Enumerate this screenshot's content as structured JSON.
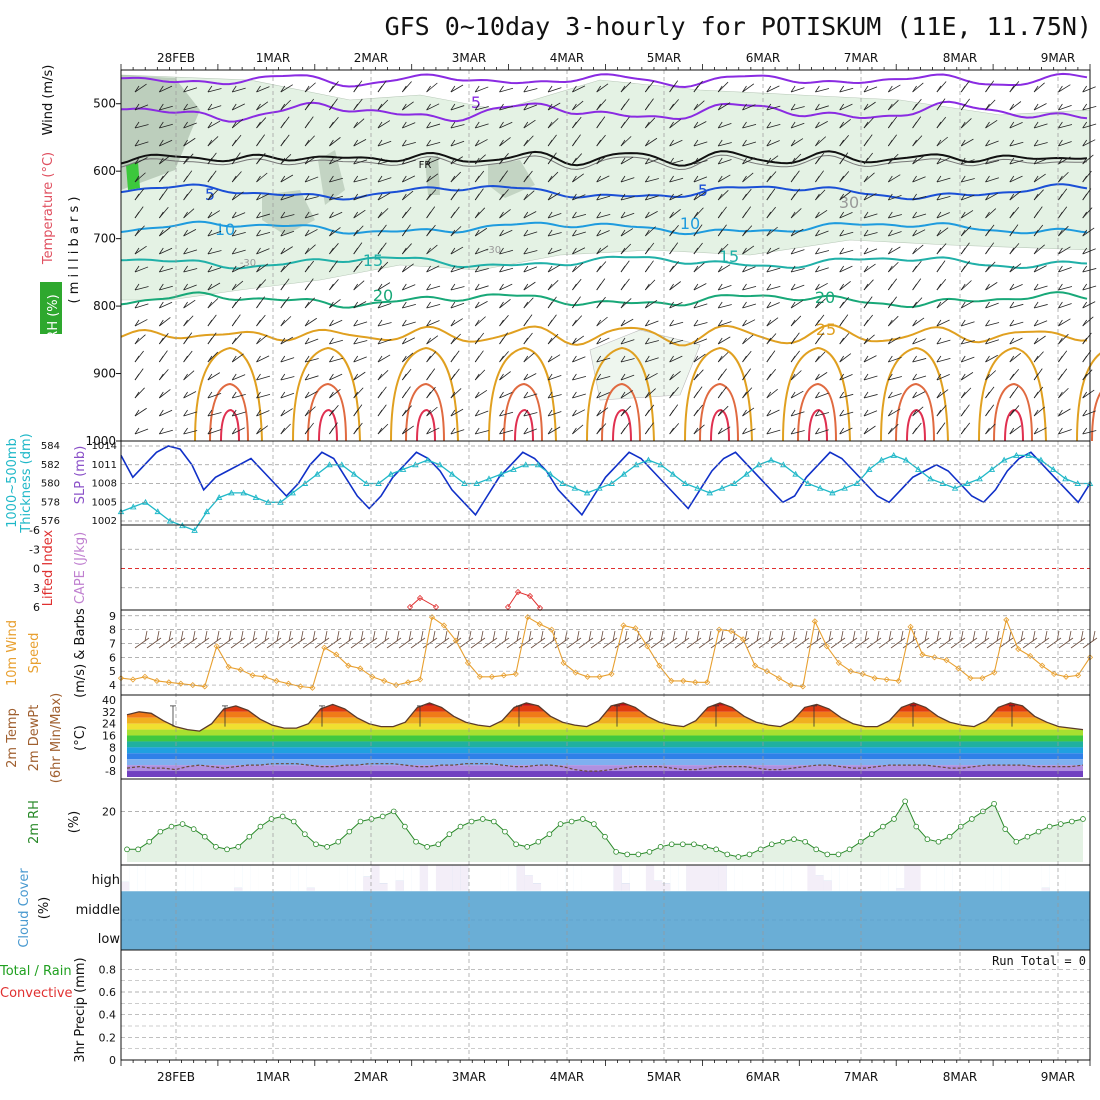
{
  "title": "GFS 0~10day 3-hourly for POTISKUM (11E, 11.75N)",
  "dates": [
    "28FEB",
    "1MAR",
    "2MAR",
    "3MAR",
    "4MAR",
    "5MAR",
    "6MAR",
    "7MAR",
    "8MAR",
    "9MAR"
  ],
  "colors": {
    "grid": "#999999",
    "temp_purple": "#8a2be2",
    "temp_blue": "#1a4fd6",
    "temp_lightblue": "#1e9bde",
    "temp_teal": "#20b0a8",
    "temp_green": "#18a878",
    "temp_orange": "#e0a020",
    "temp_red": "#e03050",
    "rh_fill": "#e4f2e4",
    "rh_dark": "#9bb09b",
    "slp": "#1030c8",
    "thickness": "#20b8c8",
    "li": "#e03030",
    "wind10": "#e8a030",
    "rh2m": "#2a8a2a",
    "cloud": "#6aaed6",
    "precip_green": "#20a020",
    "precip_red": "#e03030"
  },
  "panels": {
    "upper": {
      "labels": [
        "RH (%)",
        "Temperature (°C)",
        "Wind (m/s)",
        "( m i l l i b a r s )"
      ],
      "yticks": [
        "500",
        "600",
        "700",
        "800",
        "900",
        "1000"
      ],
      "isotherm_labels": [
        "5",
        "FR",
        "5",
        "5",
        "10",
        "10",
        "15",
        "15",
        "20",
        "20",
        "25",
        "-30",
        "30",
        "-30"
      ]
    },
    "thick": {
      "labels": [
        "1000~500mb",
        "Thickness (dm)",
        "SLP (mb)"
      ],
      "left_ticks": [
        "584",
        "582",
        "580",
        "578",
        "576"
      ],
      "right_ticks": [
        "1014",
        "1011",
        "1008",
        "1005",
        "1002"
      ]
    },
    "li": {
      "labels": [
        "Lifted Index",
        "CAPE (J/kg)"
      ],
      "yticks": [
        "-6",
        "-3",
        "0",
        "3",
        "6"
      ]
    },
    "wind": {
      "labels": [
        "10m Wind",
        "Speed",
        "(m/s) & Barbs"
      ],
      "yticks": [
        "9",
        "8",
        "7",
        "6",
        "5",
        "4"
      ]
    },
    "temp": {
      "labels": [
        "2m Temp",
        "2m DewPt",
        "(6hr Min/Max)",
        "(°C)"
      ],
      "yticks": [
        "40",
        "32",
        "24",
        "16",
        "8",
        "0",
        "-8"
      ]
    },
    "rh": {
      "labels": [
        "2m RH",
        "(%)"
      ],
      "yticks": [
        "20"
      ]
    },
    "cloud": {
      "labels": [
        "Cloud Cover",
        "(%)"
      ],
      "yticks": [
        "high",
        "middle",
        "low"
      ]
    },
    "precip": {
      "labels": [
        "Total / Rain",
        "Convective",
        "3hr Precip (mm)"
      ],
      "yticks": [
        "0.8",
        "0.6",
        "0.4",
        "0.2",
        "0"
      ],
      "run_total": "Run Total = 0"
    }
  },
  "chart_data": [
    {
      "type": "line",
      "name": "thickness_slp",
      "series": [
        {
          "name": "SLP (mb)",
          "values": [
            1012.5,
            1009,
            1011,
            1013,
            1014,
            1013.5,
            1011,
            1007,
            1009,
            1010,
            1011,
            1012,
            1010,
            1008,
            1006,
            1008,
            1011,
            1013,
            1012,
            1009,
            1006,
            1004,
            1006,
            1009,
            1011,
            1013,
            1012,
            1010,
            1007,
            1005,
            1003,
            1006,
            1009,
            1011,
            1013,
            1012,
            1010,
            1007,
            1005,
            1003,
            1006,
            1009,
            1011,
            1013,
            1012,
            1010,
            1008,
            1006,
            1004,
            1007,
            1010,
            1012,
            1013,
            1011,
            1009,
            1007,
            1005,
            1006,
            1009,
            1011,
            1013,
            1012,
            1010,
            1008,
            1006,
            1005,
            1007,
            1009,
            1010,
            1011,
            1010,
            1008,
            1006,
            1005,
            1007,
            1010,
            1012,
            1013,
            1011,
            1009,
            1007,
            1005,
            1008
          ]
        },
        {
          "name": "Thickness (dm)",
          "values": [
            577,
            577.5,
            578,
            577,
            576,
            575.5,
            575,
            577,
            578.5,
            579,
            579,
            578.5,
            578,
            578,
            579,
            580,
            581,
            582,
            582,
            581,
            580,
            580,
            581,
            581.5,
            582,
            582.5,
            582,
            581,
            580,
            580,
            580.5,
            581,
            581.5,
            582,
            582,
            581,
            580,
            579.5,
            579,
            579.5,
            580,
            581,
            582,
            582.5,
            582,
            581,
            580,
            579.5,
            579,
            579.5,
            580,
            581,
            582,
            582.5,
            582,
            581,
            580,
            579.5,
            579,
            579.5,
            580,
            581.5,
            582.5,
            583,
            582.5,
            581.5,
            580.5,
            580,
            579.5,
            580,
            580.5,
            581.5,
            582.5,
            583,
            583,
            582.5,
            581.5,
            580.5,
            580,
            580
          ]
        }
      ],
      "left_range": [
        576,
        584
      ],
      "right_range": [
        1002,
        1014
      ]
    },
    {
      "type": "line",
      "name": "lifted_index",
      "series": [
        {
          "name": "Lifted Index",
          "values": [
            4,
            3,
            4
          ]
        },
        {
          "name": "Lifted Index 2",
          "values": [
            4,
            2,
            3,
            4
          ]
        }
      ],
      "ylim": [
        6,
        -6
      ]
    },
    {
      "type": "line",
      "name": "wind10m",
      "series": [
        {
          "name": "10m Wind Speed (m/s)",
          "values": [
            4.5,
            4.4,
            4.6,
            4.3,
            4.2,
            4.1,
            4.0,
            3.9,
            6.8,
            5.3,
            5.1,
            4.7,
            4.6,
            4.3,
            4.1,
            3.9,
            3.8,
            6.7,
            6.2,
            5.4,
            5.2,
            4.6,
            4.3,
            4.0,
            4.2,
            4.4,
            8.9,
            8.3,
            7.2,
            5.6,
            4.6,
            4.6,
            4.7,
            4.8,
            8.9,
            8.4,
            8.0,
            5.6,
            4.9,
            4.6,
            4.6,
            4.8,
            8.3,
            8.1,
            6.8,
            5.4,
            4.3,
            4.3,
            4.2,
            4.2,
            8.0,
            7.9,
            7.3,
            5.4,
            5.0,
            4.5,
            4.0,
            3.9,
            8.6,
            6.8,
            5.6,
            5.0,
            4.8,
            4.5,
            4.4,
            4.3,
            8.2,
            6.2,
            6.0,
            5.8,
            5.2,
            4.5,
            4.5,
            4.9,
            8.7,
            6.6,
            6.1,
            5.4,
            4.8,
            4.6,
            4.7,
            6.0
          ]
        }
      ],
      "ylim": [
        3.5,
        9.2
      ]
    },
    {
      "type": "area",
      "name": "temp2m",
      "series": [
        {
          "name": "2m Temp",
          "values": [
            30,
            32,
            31,
            26,
            22,
            20,
            19,
            24,
            34,
            36,
            33,
            27,
            23,
            21,
            21,
            24,
            34,
            37,
            34,
            28,
            24,
            22,
            22,
            25,
            35,
            38,
            35,
            29,
            25,
            23,
            22,
            26,
            35,
            38,
            36,
            29,
            25,
            23,
            22,
            26,
            36,
            38,
            35,
            29,
            25,
            23,
            22,
            26,
            35,
            38,
            35,
            29,
            25,
            23,
            22,
            26,
            35,
            37,
            34,
            28,
            24,
            22,
            22,
            26,
            35,
            38,
            35,
            29,
            25,
            23,
            22,
            26,
            35,
            38,
            36,
            29,
            25,
            22,
            21,
            20
          ]
        },
        {
          "name": "2m DewPt",
          "values": [
            -6,
            -5,
            -6,
            -6,
            -7,
            -5,
            -4,
            -5,
            -6,
            -5,
            -4,
            -4,
            -3,
            -3,
            -3,
            -4,
            -5,
            -5,
            -4,
            -4,
            -3,
            -3,
            -3,
            -4,
            -5,
            -5,
            -4,
            -4,
            -3,
            -3,
            -3,
            -4,
            -5,
            -5,
            -4,
            -4,
            -5,
            -7,
            -8,
            -8,
            -7,
            -6,
            -5,
            -5,
            -5,
            -6,
            -7,
            -7,
            -6,
            -5,
            -5,
            -5,
            -6,
            -7,
            -7,
            -6,
            -5,
            -4,
            -4,
            -5,
            -6,
            -6,
            -5,
            -4,
            -4,
            -4,
            -4,
            -5,
            -6,
            -6,
            -5,
            -4,
            -4,
            -4,
            -4,
            -5,
            -5,
            -5,
            -5,
            -4
          ]
        }
      ],
      "ylim": [
        -12,
        42
      ]
    },
    {
      "type": "area",
      "name": "rh2m",
      "series": [
        {
          "name": "2m RH",
          "values": [
            5,
            5,
            8,
            12,
            14,
            15,
            13,
            10,
            6,
            5,
            6,
            10,
            14,
            17,
            18,
            16,
            11,
            7,
            6,
            8,
            12,
            16,
            17,
            18,
            20,
            14,
            8,
            6,
            7,
            11,
            14,
            16,
            17,
            16,
            12,
            7,
            6,
            8,
            11,
            15,
            16,
            17,
            15,
            10,
            4,
            3,
            3,
            4,
            6,
            7,
            7,
            7,
            6,
            5,
            3,
            2,
            3,
            5,
            7,
            8,
            9,
            8,
            5,
            3,
            3,
            5,
            8,
            11,
            14,
            17,
            24,
            14,
            9,
            8,
            10,
            14,
            17,
            20,
            23,
            13,
            8,
            10,
            12,
            14,
            15,
            16,
            17
          ]
        }
      ],
      "ylim": [
        0,
        32
      ]
    },
    {
      "type": "bar",
      "name": "cloud_high",
      "series": [
        {
          "name": "high",
          "values": [
            35,
            0,
            0,
            0,
            0,
            0,
            0,
            0,
            0,
            0,
            0,
            0,
            0,
            0,
            12,
            0,
            0,
            0,
            0,
            0,
            0,
            0,
            0,
            12,
            0,
            0,
            0,
            0,
            0,
            0,
            55,
            100,
            30,
            0,
            40,
            0,
            0,
            100,
            0,
            100,
            100,
            100,
            100,
            0,
            0,
            0,
            0,
            0,
            0,
            100,
            60,
            30,
            0,
            0,
            0,
            0,
            0,
            0,
            0,
            0,
            0,
            100,
            30,
            0,
            0,
            100,
            40,
            30,
            0,
            0,
            100,
            100,
            100,
            100,
            100,
            0,
            0,
            0,
            0,
            0,
            0,
            0,
            0,
            0,
            0,
            100,
            60,
            40,
            0,
            0,
            0,
            0,
            0,
            0,
            0,
            0,
            10,
            100,
            100,
            0,
            0,
            0,
            0,
            0,
            0,
            0,
            0,
            0,
            0,
            0,
            0,
            0,
            0,
            0,
            12,
            0,
            0,
            0,
            0,
            0
          ]
        }
      ],
      "ylim": [
        0,
        100
      ]
    },
    {
      "type": "bar",
      "name": "precip3hr",
      "series": [
        {
          "name": "Total / Rain",
          "values": []
        }
      ],
      "ylim": [
        0,
        0.9
      ]
    }
  ]
}
